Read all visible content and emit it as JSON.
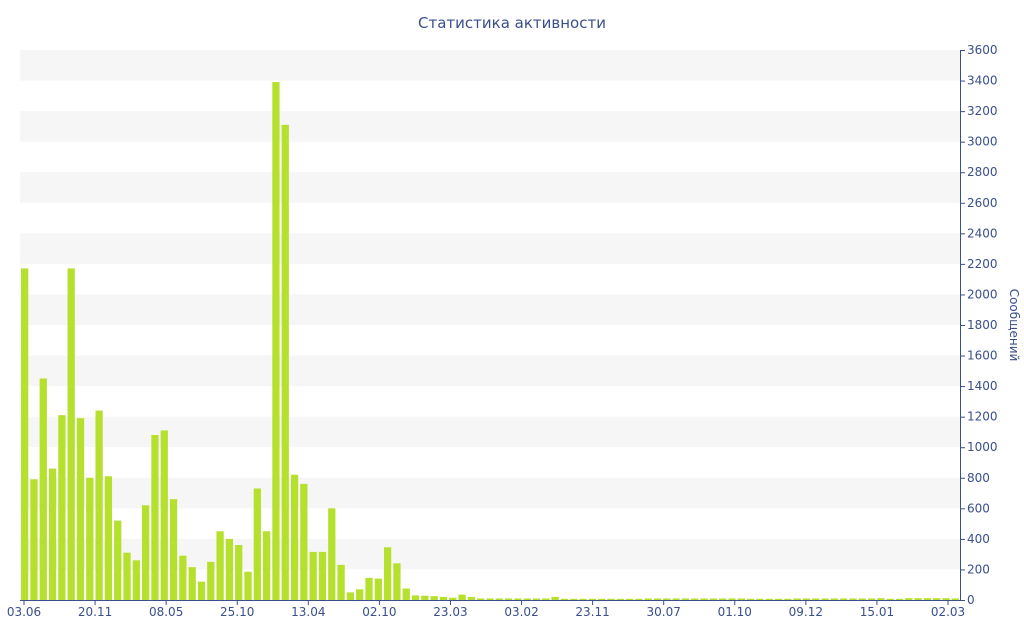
{
  "chart_data": {
    "type": "bar",
    "title": "Статистика активности",
    "ylabel": "Сообщений",
    "xlabel": "",
    "ylim": [
      0,
      3600
    ],
    "y_ticks": [
      0,
      200,
      400,
      600,
      800,
      1000,
      1200,
      1400,
      1600,
      1800,
      2000,
      2200,
      2400,
      2600,
      2800,
      3000,
      3200,
      3400,
      3600
    ],
    "x_tick_labels": [
      "03.06",
      "20.11",
      "08.05",
      "25.10",
      "13.04",
      "02.10",
      "23.03",
      "03.02",
      "23.11",
      "30.07",
      "01.10",
      "09.12",
      "15.01",
      "02.03"
    ],
    "grid": "horizontal alternating bands",
    "bar_color": "#b5e02e",
    "band_color": "#f6f6f6",
    "axis_color": "#3a4f8c",
    "values": [
      2170,
      790,
      1450,
      860,
      1210,
      2170,
      1190,
      800,
      1240,
      810,
      520,
      310,
      260,
      620,
      1080,
      1110,
      660,
      290,
      215,
      120,
      250,
      450,
      400,
      360,
      185,
      730,
      450,
      3390,
      3110,
      820,
      760,
      315,
      315,
      600,
      230,
      50,
      70,
      145,
      140,
      345,
      240,
      75,
      30,
      28,
      25,
      20,
      15,
      35,
      20,
      10,
      10,
      10,
      10,
      10,
      10,
      10,
      10,
      20,
      8,
      8,
      8,
      8,
      8,
      8,
      8,
      8,
      8,
      10,
      10,
      10,
      10,
      10,
      10,
      10,
      10,
      10,
      10,
      10,
      8,
      8,
      8,
      8,
      8,
      10,
      10,
      10,
      10,
      10,
      10,
      10,
      10,
      10,
      12,
      8,
      8,
      12,
      12,
      12,
      12,
      12,
      10
    ]
  }
}
